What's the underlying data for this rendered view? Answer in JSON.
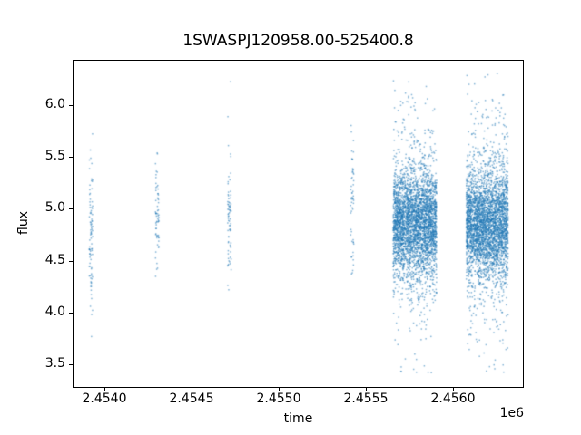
{
  "chart_data": {
    "type": "scatter",
    "title": "1SWASPJ120958.00-525400.8",
    "xlabel": "time",
    "ylabel": "flux",
    "x_offset_factor": "1e6",
    "xlim": [
      2453820,
      2456400
    ],
    "ylim": [
      3.28,
      6.43
    ],
    "xticks": [
      2454000,
      2454500,
      2455000,
      2455500,
      2456000
    ],
    "xtick_labels": [
      "2.4540",
      "2.4545",
      "2.4550",
      "2.4555",
      "2.4560"
    ],
    "yticks": [
      3.5,
      4.0,
      4.5,
      5.0,
      5.5,
      6.0
    ],
    "ytick_labels": [
      "3.5",
      "4.0",
      "4.5",
      "5.0",
      "5.5",
      "6.0"
    ],
    "grid": false,
    "legend": null,
    "marker_color": "#1f77b4",
    "marker_alpha": 0.55,
    "marker_size": 1.5,
    "clusters": [
      {
        "x_center": 2453920,
        "x_halfwidth": 10,
        "n": 90,
        "flux_mean": 4.82,
        "core_std": 0.32,
        "tail_std": 0.85,
        "tail_frac": 0.22,
        "flux_min": 3.5,
        "flux_max": 6.08
      },
      {
        "x_center": 2454300,
        "x_halfwidth": 10,
        "n": 65,
        "flux_mean": 4.95,
        "core_std": 0.28,
        "tail_std": 0.55,
        "tail_frac": 0.18,
        "flux_min": 4.3,
        "flux_max": 5.72
      },
      {
        "x_center": 2454715,
        "x_halfwidth": 10,
        "n": 75,
        "flux_mean": 4.9,
        "core_std": 0.32,
        "tail_std": 0.85,
        "tail_frac": 0.22,
        "flux_min": 4.05,
        "flux_max": 6.3
      },
      {
        "x_center": 2455420,
        "x_halfwidth": 10,
        "n": 55,
        "flux_mean": 4.95,
        "core_std": 0.3,
        "tail_std": 0.75,
        "tail_frac": 0.2,
        "flux_min": 4.1,
        "flux_max": 6.02
      },
      {
        "x_center": 2455780,
        "x_halfwidth": 125,
        "n": 3600,
        "flux_mean": 4.86,
        "core_std": 0.25,
        "tail_std": 0.62,
        "tail_frac": 0.18,
        "flux_min": 3.38,
        "flux_max": 6.33
      },
      {
        "x_center": 2456195,
        "x_halfwidth": 120,
        "n": 3600,
        "flux_mean": 4.85,
        "core_std": 0.25,
        "tail_std": 0.62,
        "tail_frac": 0.18,
        "flux_min": 3.42,
        "flux_max": 6.36
      }
    ]
  }
}
